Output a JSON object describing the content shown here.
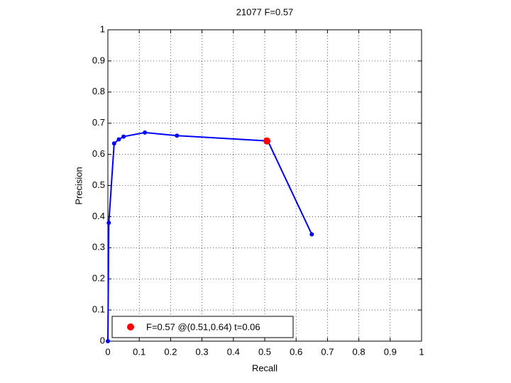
{
  "chart_data": {
    "type": "line",
    "title": "21077 F=0.57",
    "xlabel": "Recall",
    "ylabel": "Precision",
    "series": [
      {
        "color": "#0000ff",
        "x": [
          0,
          0.003,
          0.02,
          0.035,
          0.05,
          0.118,
          0.22,
          0.51,
          0.65
        ],
        "values": [
          0,
          0.38,
          0.635,
          0.648,
          0.657,
          0.67,
          0.66,
          0.643,
          0.343
        ]
      },
      {
        "name": "F=0.57 @(0.51,0.64) t=0.06",
        "color": "#ff0000",
        "x": [
          0.507
        ],
        "values": [
          0.643
        ]
      }
    ],
    "xlim": [
      0,
      1
    ],
    "ylim": [
      0,
      1
    ],
    "xticks": [
      0,
      0.1,
      0.2,
      0.3,
      0.4,
      0.5,
      0.6,
      0.7,
      0.8,
      0.9,
      1
    ],
    "yticks": [
      0,
      0.1,
      0.2,
      0.3,
      0.4,
      0.5,
      0.6,
      0.7,
      0.8,
      0.9,
      1
    ],
    "grid": true,
    "legend": "lower left"
  }
}
